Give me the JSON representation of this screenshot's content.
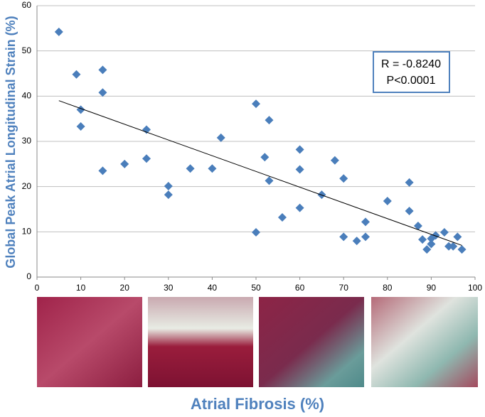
{
  "chart_data": {
    "type": "scatter",
    "x_label": "Atrial Fibrosis (%)",
    "y_label": "Global Peak Atrial Longitudinal  Strain (%)",
    "annotations": [
      "R = -0.8240",
      "P<0.0001"
    ],
    "color": "#4a7ebb",
    "x": [
      5,
      9,
      10,
      10,
      15,
      15,
      15,
      20,
      25,
      25,
      30,
      30,
      35,
      40,
      42,
      50,
      50,
      52,
      53,
      53,
      56,
      60,
      60,
      60,
      65,
      68,
      70,
      70,
      73,
      75,
      75,
      80,
      85,
      85,
      87,
      88,
      89,
      90,
      90,
      91,
      93,
      94,
      95,
      96,
      97
    ],
    "values": [
      54.2,
      44.8,
      37,
      33.3,
      45.8,
      40.8,
      23.5,
      25,
      32.6,
      26.2,
      20.1,
      18.2,
      24,
      24,
      30.8,
      38.3,
      9.9,
      26.5,
      34.7,
      21.3,
      13.2,
      28.2,
      23.8,
      15.3,
      18.2,
      25.8,
      21.8,
      8.9,
      8,
      12.2,
      8.9,
      16.8,
      20.9,
      14.6,
      11.3,
      8.3,
      6.1,
      7.3,
      8.5,
      9.2,
      9.9,
      6.8,
      6.8,
      8.9,
      6.1
    ],
    "trendline": {
      "x": [
        5,
        97
      ],
      "y": [
        39,
        7
      ],
      "color": "#000000"
    },
    "xlim": [
      0,
      100
    ],
    "xticks": [
      0,
      10,
      20,
      30,
      40,
      50,
      60,
      70,
      80,
      90,
      100
    ],
    "ylim": [
      0,
      60
    ],
    "yticks": [
      0,
      10,
      20,
      30,
      40,
      50,
      60
    ],
    "grid": true
  }
}
